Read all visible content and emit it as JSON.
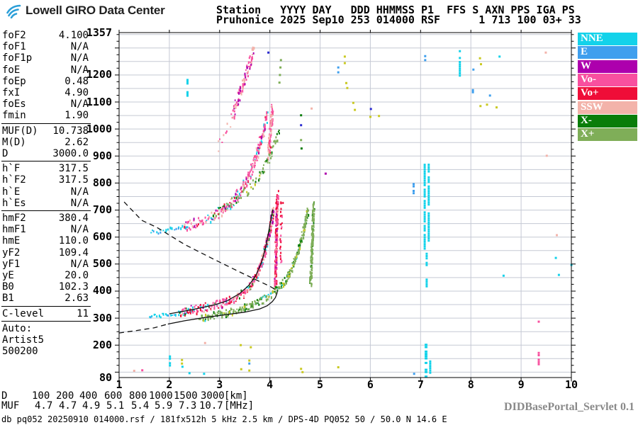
{
  "header": {
    "logo_text": "Lowell GIRO Data Center",
    "station_line1": "Station   YYYY DAY   DDD HHMMSS P1  FFS S AXN PPS IGA PS",
    "station_line2": "Pruhonice 2025 Sep10 253 014000 RSF      1 713 100 03+ 33"
  },
  "sidebar": {
    "rows": [
      {
        "l": "foF2",
        "v": "4.100"
      },
      {
        "l": "foF1",
        "v": "N/A"
      },
      {
        "l": "foF1p",
        "v": "N/A"
      },
      {
        "l": "foE",
        "v": "N/A"
      },
      {
        "l": "foEp",
        "v": "0.48"
      },
      {
        "l": "fxI",
        "v": "4.90"
      },
      {
        "l": "foEs",
        "v": "N/A"
      },
      {
        "l": "fmin",
        "v": "1.90"
      },
      "sep",
      {
        "l": "MUF(D)",
        "v": "10.738"
      },
      {
        "l": "M(D)",
        "v": "2.62"
      },
      {
        "l": "D",
        "v": "3000.0"
      },
      "sep",
      {
        "l": "h`F",
        "v": "317.5"
      },
      {
        "l": "h`F2",
        "v": "317.5"
      },
      {
        "l": "h`E",
        "v": "N/A"
      },
      {
        "l": "h`Es",
        "v": "N/A"
      },
      "sep",
      {
        "l": "hmF2",
        "v": "380.4"
      },
      {
        "l": "hmF1",
        "v": "N/A"
      },
      {
        "l": "hmE",
        "v": "110.0"
      },
      {
        "l": "yF2",
        "v": "109.4"
      },
      {
        "l": "yF1",
        "v": "N/A"
      },
      {
        "l": "yE",
        "v": "20.0"
      },
      {
        "l": "B0",
        "v": "102.3"
      },
      {
        "l": "B1",
        "v": "2.63"
      },
      "sep",
      {
        "l": "C-level",
        "v": "11"
      },
      "sep",
      {
        "l": "Auto:",
        "v": ""
      },
      {
        "l": "Artist5",
        "v": ""
      },
      {
        "l": "500200",
        "v": ""
      }
    ]
  },
  "legend": {
    "items": [
      {
        "label": "NNE",
        "color": "nne"
      },
      {
        "label": "E",
        "color": "e"
      },
      {
        "label": "W",
        "color": "w"
      },
      {
        "label": "Vo-",
        "color": "vom"
      },
      {
        "label": "Vo+",
        "color": "vop"
      },
      {
        "label": "SSW",
        "color": "ssw"
      },
      {
        "label": "X-",
        "color": "xm"
      },
      {
        "label": "X+",
        "color": "xp"
      }
    ]
  },
  "footer": {
    "d_label": "D",
    "muf_label": "MUF",
    "d_values": [
      "100",
      "200",
      "400",
      "600",
      "800",
      "1000",
      "1500",
      "3000",
      "[km]"
    ],
    "muf_values": [
      "4.7",
      "4.7",
      "4.9",
      "5.1",
      "5.4",
      "5.9",
      "7.3",
      "10.7",
      "[MHz]"
    ],
    "status": "db pq052 20250910 014000.rsf / 181fx512h 5 kHz 2.5 km / DPS-4D PQ052 50 / 50.0 N 14.6 E",
    "servlet": "DIDBasePortal_Servlet 0.1"
  },
  "chart_data": {
    "type": "scatter",
    "title": "Pruhonice ionogram 2025 Sep10 014000 UT",
    "xlabel": "[MHz]",
    "ylabel": "[km]",
    "x_range": [
      1,
      10
    ],
    "y_range": [
      80,
      1357
    ],
    "x_ticks": [
      1,
      2,
      3,
      4,
      5,
      6,
      7,
      8,
      9,
      10
    ],
    "y_ticks": [
      1357,
      1200,
      1100,
      1000,
      900,
      800,
      700,
      600,
      500,
      400,
      300,
      200,
      80
    ],
    "grid": {
      "x_step": 1,
      "y_step": 50,
      "on": true
    },
    "grid_color": "#c5c9d4",
    "colors": {
      "nne": "#13d2ea",
      "e": "#3f9fee",
      "w": "#ad00ad",
      "vom": "#f8509f",
      "vop": "#ef0d38",
      "ssw": "#f3b3aa",
      "xm": "#0a7d0a",
      "xp": "#7fae58",
      "kh": "#c9c922",
      "nv": "#2a2ad0"
    },
    "traces": [
      {
        "name": "f-trace-1hop-start-oblique",
        "colors": {
          "nne": 0.85,
          "e": 0.15
        },
        "jitter": 3,
        "step": 2.4,
        "dots": 1,
        "points": [
          [
            1.58,
            308
          ],
          [
            1.8,
            314
          ],
          [
            2.05,
            319
          ],
          [
            2.3,
            326
          ]
        ]
      },
      {
        "name": "f-trace-1hop-o",
        "colors": {
          "vom": 0.4,
          "vop": 0.28,
          "ssw": 0.12,
          "nne": 0.08,
          "w": 0.05,
          "xm": 0.07
        },
        "jitter": 6,
        "step": 1.6,
        "dots": 2,
        "points": [
          [
            2.2,
            325
          ],
          [
            2.5,
            335
          ],
          [
            2.8,
            346
          ],
          [
            3.05,
            358
          ],
          [
            3.25,
            373
          ],
          [
            3.45,
            396
          ],
          [
            3.6,
            424
          ],
          [
            3.72,
            460
          ],
          [
            3.82,
            507
          ],
          [
            3.9,
            558
          ],
          [
            3.97,
            612
          ],
          [
            4.03,
            668
          ],
          [
            4.07,
            712
          ]
        ]
      },
      {
        "name": "f-asymptote-o",
        "colors": {
          "vop": 0.6,
          "vom": 0.3,
          "w": 0.05,
          "ssw": 0.05
        },
        "jitter": 8,
        "step": 1.4,
        "dots": 2,
        "points": [
          [
            4.1,
            430
          ],
          [
            4.11,
            530
          ],
          [
            4.12,
            630
          ],
          [
            4.13,
            720
          ],
          [
            4.14,
            760
          ]
        ]
      },
      {
        "name": "f-asymptote-o-outer",
        "colors": {
          "vop": 0.7,
          "vom": 0.3
        },
        "jitter": 5,
        "step": 3.5,
        "dots": 1,
        "points": [
          [
            4.2,
            500
          ],
          [
            4.21,
            600
          ],
          [
            4.22,
            700
          ],
          [
            4.23,
            745
          ]
        ]
      },
      {
        "name": "f-trace-1hop-x",
        "colors": {
          "xp": 0.62,
          "xm": 0.28,
          "nne": 0.05,
          "kh": 0.05
        },
        "jitter": 5,
        "step": 1.8,
        "dots": 2,
        "points": [
          [
            2.6,
            300
          ],
          [
            2.85,
            312
          ],
          [
            3.1,
            322
          ],
          [
            3.35,
            334
          ],
          [
            3.6,
            350
          ],
          [
            3.8,
            366
          ],
          [
            4.0,
            388
          ],
          [
            4.18,
            416
          ],
          [
            4.33,
            452
          ],
          [
            4.45,
            498
          ],
          [
            4.55,
            548
          ],
          [
            4.63,
            602
          ],
          [
            4.7,
            658
          ],
          [
            4.75,
            708
          ]
        ]
      },
      {
        "name": "f-asymptote-x",
        "colors": {
          "xp": 0.68,
          "xm": 0.32
        },
        "jitter": 7,
        "step": 1.6,
        "dots": 2,
        "points": [
          [
            4.8,
            430
          ],
          [
            4.82,
            530
          ],
          [
            4.84,
            630
          ],
          [
            4.86,
            725
          ]
        ]
      },
      {
        "name": "f-trace-2hop-start-oblique",
        "colors": {
          "nne": 0.75,
          "e": 0.25
        },
        "jitter": 3,
        "step": 2.6,
        "dots": 1,
        "points": [
          [
            1.62,
            620
          ],
          [
            1.9,
            628
          ],
          [
            2.15,
            637
          ],
          [
            2.4,
            648
          ]
        ]
      },
      {
        "name": "f-trace-2hop-o",
        "colors": {
          "vom": 0.5,
          "ssw": 0.18,
          "vop": 0.1,
          "w": 0.08,
          "nne": 0.14
        },
        "jitter": 8,
        "step": 2,
        "dots": 2,
        "points": [
          [
            2.3,
            645
          ],
          [
            2.6,
            660
          ],
          [
            2.85,
            678
          ],
          [
            3.05,
            700
          ],
          [
            3.2,
            726
          ],
          [
            3.35,
            760
          ],
          [
            3.5,
            802
          ],
          [
            3.62,
            852
          ],
          [
            3.72,
            906
          ],
          [
            3.8,
            958
          ],
          [
            3.88,
            1012
          ],
          [
            3.94,
            1062
          ]
        ]
      },
      {
        "name": "f-spread-2hop",
        "colors": {
          "vom": 0.6,
          "vop": 0.22,
          "ssw": 0.18
        },
        "jitter": 10,
        "step": 1.8,
        "dots": 2,
        "points": [
          [
            3.96,
            900
          ],
          [
            3.99,
            970
          ],
          [
            4.02,
            1040
          ],
          [
            4.04,
            1085
          ]
        ]
      },
      {
        "name": "f-trace-2hop-x",
        "colors": {
          "xp": 0.7,
          "xm": 0.24,
          "kh": 0.06
        },
        "jitter": 7,
        "step": 2.2,
        "dots": 1,
        "points": [
          [
            2.85,
            690
          ],
          [
            3.1,
            713
          ],
          [
            3.35,
            743
          ],
          [
            3.6,
            784
          ],
          [
            3.8,
            832
          ],
          [
            3.95,
            888
          ],
          [
            4.08,
            948
          ],
          [
            4.18,
            1005
          ]
        ]
      },
      {
        "name": "f-spread-3hop",
        "colors": {
          "vom": 0.6,
          "ssw": 0.22,
          "w": 0.18
        },
        "jitter": 9,
        "step": 2.2,
        "dots": 2,
        "points": [
          [
            3.24,
            1058
          ],
          [
            3.34,
            1108
          ],
          [
            3.44,
            1162
          ],
          [
            3.54,
            1218
          ],
          [
            3.62,
            1268
          ],
          [
            3.67,
            1300
          ]
        ]
      },
      {
        "name": "f-spread-3hop-pre",
        "colors": {
          "vom": 0.55,
          "ssw": 0.45
        },
        "jitter": 6,
        "step": 4.5,
        "dots": 1,
        "points": [
          [
            2.95,
            935
          ],
          [
            3.1,
            985
          ],
          [
            3.22,
            1032
          ]
        ]
      }
    ],
    "columns": [
      {
        "color": "nne",
        "f": 7.06,
        "w": 3,
        "segments": [
          [
            560,
            645
          ],
          [
            660,
            880
          ]
        ]
      },
      {
        "color": "nne",
        "f": 7.14,
        "w": 3,
        "segments": [
          [
            590,
            700
          ],
          [
            720,
            825
          ],
          [
            845,
            872
          ]
        ]
      },
      {
        "color": "nne",
        "f": 7.1,
        "w": 3,
        "segments": [
          [
            420,
            455
          ],
          [
            500,
            542
          ]
        ]
      },
      {
        "color": "e",
        "f": 6.84,
        "w": 3,
        "segments": [
          [
            760,
            800
          ]
        ]
      },
      {
        "color": "nne",
        "f": 7.76,
        "w": 3,
        "segments": [
          [
            1198,
            1252
          ],
          [
            1262,
            1292
          ]
        ]
      },
      {
        "color": "nne",
        "f": 7.08,
        "w": 4,
        "segments": [
          [
            85,
            205
          ]
        ]
      },
      {
        "color": "nne",
        "f": 7.17,
        "w": 3,
        "segments": [
          [
            88,
            152
          ]
        ]
      },
      {
        "color": "nne",
        "f": 1.99,
        "w": 3,
        "segments": [
          [
            120,
            162
          ]
        ]
      },
      {
        "color": "vom",
        "f": 9.33,
        "w": 3,
        "segments": [
          [
            128,
            175
          ]
        ]
      }
    ],
    "dots": [
      [
        1.28,
        105,
        "ssw"
      ],
      [
        1.44,
        107,
        "vom"
      ],
      [
        2.38,
        96,
        "nne"
      ],
      [
        2.67,
        94,
        "nne"
      ],
      [
        2.23,
        145,
        "kh"
      ],
      [
        2.23,
        132,
        "kh"
      ],
      [
        2.24,
        120,
        "nne"
      ],
      [
        2.69,
        208,
        "ssw"
      ],
      [
        3.4,
        200,
        "kh"
      ],
      [
        3.6,
        192,
        "kh"
      ],
      [
        3.41,
        111,
        "kh"
      ],
      [
        3.57,
        143,
        "kh"
      ],
      [
        3.57,
        132,
        "e"
      ],
      [
        3.57,
        106,
        "kh"
      ],
      [
        4.6,
        112,
        "kh"
      ],
      [
        4.63,
        100,
        "kh"
      ],
      [
        5.34,
        118,
        "kh"
      ],
      [
        6.85,
        94,
        "e"
      ],
      [
        2.34,
        1175,
        "nne",
        8
      ],
      [
        2.34,
        1130,
        "nne",
        8
      ],
      [
        3.95,
        1283,
        "nv"
      ],
      [
        4.17,
        1172,
        "xp"
      ],
      [
        4.18,
        1200,
        "xp"
      ],
      [
        4.19,
        1228,
        "xp"
      ],
      [
        4.2,
        1255,
        "xp"
      ],
      [
        4.6,
        1051,
        "xm"
      ],
      [
        4.6,
        1014,
        "nv"
      ],
      [
        4.6,
        959,
        "xp"
      ],
      [
        4.61,
        928,
        "xm"
      ],
      [
        4.81,
        1076,
        "ssw"
      ],
      [
        5.09,
        835,
        "w"
      ],
      [
        5.34,
        1228,
        "e"
      ],
      [
        5.34,
        1210,
        "e"
      ],
      [
        5.47,
        1268,
        "kh"
      ],
      [
        5.47,
        1244,
        "kh"
      ],
      [
        5.5,
        1170,
        "kh"
      ],
      [
        5.52,
        1152,
        "kh"
      ],
      [
        5.64,
        1097,
        "kh"
      ],
      [
        5.67,
        1071,
        "kh"
      ],
      [
        5.99,
        1074,
        "nv"
      ],
      [
        5.98,
        1045,
        "kh"
      ],
      [
        6.15,
        1048,
        "kh"
      ],
      [
        7.07,
        1270,
        "e"
      ],
      [
        7.07,
        1255,
        "e"
      ],
      [
        8.16,
        1262,
        "kh"
      ],
      [
        8.18,
        1240,
        "kh"
      ],
      [
        8.55,
        1268,
        "nne"
      ],
      [
        8.03,
        1220,
        "e"
      ],
      [
        8.02,
        1140,
        "e",
        6
      ],
      [
        8.36,
        1124,
        "e"
      ],
      [
        8.17,
        1085,
        "kh"
      ],
      [
        8.3,
        1090,
        "kh"
      ],
      [
        8.49,
        1080,
        "kh"
      ],
      [
        9.47,
        1283,
        "ssw"
      ],
      [
        9.49,
        901,
        "ssw"
      ],
      [
        9.69,
        607,
        "ssw"
      ],
      [
        9.67,
        523,
        "nne"
      ],
      [
        9.73,
        460,
        "nne"
      ],
      [
        8.63,
        457,
        "nne"
      ],
      [
        9.98,
        497,
        "nne"
      ],
      [
        9.33,
        287,
        "vom"
      ]
    ],
    "curves": [
      {
        "name": "muf-transmission-curve",
        "style": "dashed",
        "points": [
          [
            1.1,
            730
          ],
          [
            1.45,
            662
          ],
          [
            1.75,
            636
          ],
          [
            2.3,
            573
          ],
          [
            2.86,
            520
          ],
          [
            3.43,
            468
          ],
          [
            3.78,
            437
          ],
          [
            4.0,
            418
          ],
          [
            4.13,
            403
          ]
        ]
      },
      {
        "name": "profile-extrapolation",
        "style": "dashed",
        "points": [
          [
            1.0,
            245
          ],
          [
            1.35,
            254
          ],
          [
            1.7,
            264
          ],
          [
            1.97,
            278
          ]
        ]
      },
      {
        "name": "true-height-profile",
        "style": "solid",
        "points": [
          [
            1.97,
            278
          ],
          [
            2.3,
            290
          ],
          [
            2.7,
            302
          ],
          [
            3.1,
            312
          ],
          [
            3.5,
            322
          ],
          [
            3.8,
            334
          ],
          [
            3.95,
            346
          ],
          [
            4.05,
            361
          ],
          [
            4.11,
            376
          ],
          [
            4.14,
            391
          ],
          [
            4.15,
            401
          ]
        ]
      },
      {
        "name": "fitted-o-trace",
        "style": "solid",
        "points": [
          [
            2.0,
            316
          ],
          [
            2.3,
            326
          ],
          [
            2.6,
            337
          ],
          [
            2.9,
            349
          ],
          [
            3.15,
            364
          ],
          [
            3.4,
            391
          ],
          [
            3.58,
            421
          ],
          [
            3.72,
            457
          ],
          [
            3.83,
            504
          ],
          [
            3.91,
            557
          ],
          [
            3.97,
            613
          ],
          [
            4.02,
            665
          ],
          [
            4.06,
            702
          ]
        ]
      }
    ]
  }
}
